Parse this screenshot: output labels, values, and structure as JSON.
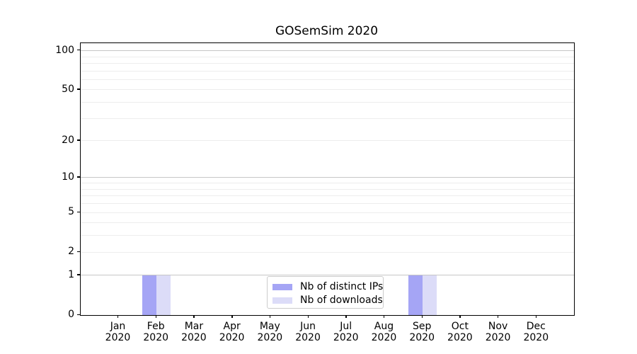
{
  "title": "GOSemSim 2020",
  "legend": {
    "items": [
      {
        "label": "Nb of distinct IPs",
        "color": "#a5a5f5"
      },
      {
        "label": "Nb of downloads",
        "color": "#dcdcf8"
      }
    ]
  },
  "axes": {
    "y_tick_labels": [
      "0",
      "1",
      "2",
      "5",
      "10",
      "20",
      "50",
      "100"
    ],
    "x_tick_labels": [
      "Jan\n2020",
      "Feb\n2020",
      "Mar\n2020",
      "Apr\n2020",
      "May\n2020",
      "Jun\n2020",
      "Jul\n2020",
      "Aug\n2020",
      "Sep\n2020",
      "Oct\n2020",
      "Nov\n2020",
      "Dec\n2020"
    ]
  },
  "chart_data": {
    "type": "bar",
    "title": "GOSemSim 2020",
    "categories": [
      "Jan 2020",
      "Feb 2020",
      "Mar 2020",
      "Apr 2020",
      "May 2020",
      "Jun 2020",
      "Jul 2020",
      "Aug 2020",
      "Sep 2020",
      "Oct 2020",
      "Nov 2020",
      "Dec 2020"
    ],
    "series": [
      {
        "name": "Nb of distinct IPs",
        "color": "#a5a5f5",
        "values": [
          0,
          1,
          0,
          0,
          0,
          0,
          0,
          0,
          1,
          0,
          0,
          0
        ]
      },
      {
        "name": "Nb of downloads",
        "color": "#dcdcf8",
        "values": [
          0,
          1,
          0,
          0,
          0,
          0,
          0,
          0,
          1,
          0,
          0,
          0
        ]
      }
    ],
    "xlabel": "",
    "ylabel": "",
    "y_scale": "log1p",
    "ylim": [
      0,
      113
    ],
    "yticks": [
      0,
      1,
      2,
      5,
      10,
      20,
      50,
      100
    ],
    "major_gridlines": [
      1,
      10,
      100
    ],
    "minor_gridlines": [
      2,
      3,
      4,
      5,
      6,
      7,
      8,
      9,
      20,
      30,
      40,
      50,
      60,
      70,
      80,
      90
    ],
    "grid": true,
    "legend_position": "lower center"
  },
  "colors": {
    "grid_minor": "#ededed",
    "grid_major": "#c6c6c6",
    "spine": "#000000",
    "background": "#ffffff"
  }
}
